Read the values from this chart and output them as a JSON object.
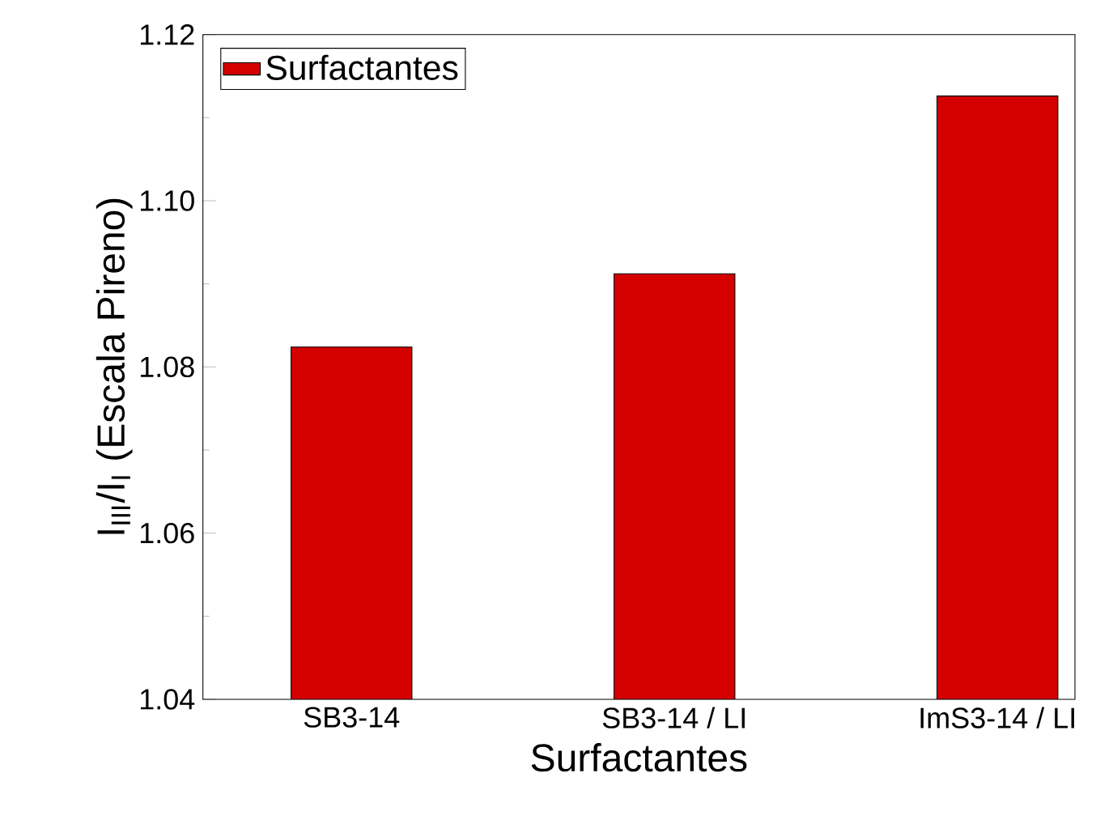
{
  "chart_data": {
    "type": "bar",
    "xlabel": "Surfactantes",
    "ylabel": "I$_{III}$/I$_{I}$ (Escala Pireno)",
    "categories": [
      "SB3-14",
      "SB3-14 / LI",
      "ImS3-14 / LI"
    ],
    "series": [
      {
        "name": "Surfactantes",
        "color": "#d40000",
        "values": [
          1.0824,
          1.0912,
          1.1126
        ]
      }
    ],
    "ylim": [
      1.04,
      1.12
    ],
    "yticks": [
      1.04,
      1.06,
      1.08,
      {
        "value": 1.1,
        "label": "1.10"
      },
      1.12
    ],
    "legend": "top left",
    "grid": false
  }
}
